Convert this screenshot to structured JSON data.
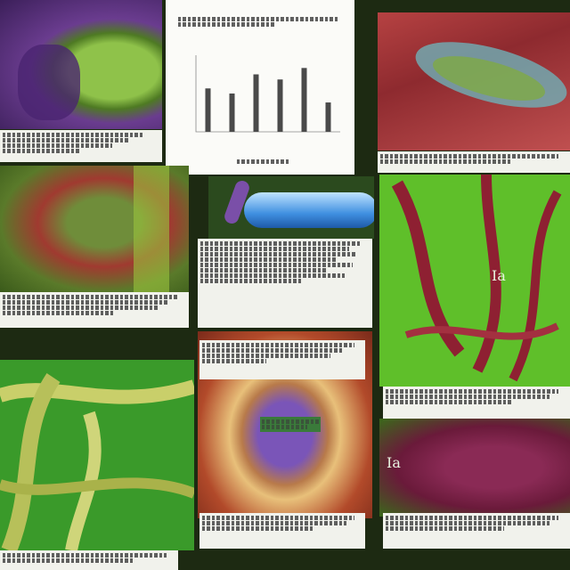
{
  "chart_data": {
    "type": "bar",
    "title": "",
    "xlabel": "",
    "ylabel": "",
    "categories": [
      "",
      "",
      "",
      "",
      "",
      ""
    ],
    "values": [
      3.4,
      3.0,
      4.5,
      4.1,
      5.0,
      2.3
    ],
    "ylim": [
      0,
      6
    ],
    "grid": false
  },
  "labels": {
    "overlay_a": "Ia",
    "overlay_b": "Ia"
  },
  "colors": {
    "leaf_green": "#6bc21e",
    "tissue_red": "#9b2d33",
    "violet": "#6a3c8f",
    "caption_bg": "#f1f2ec"
  }
}
